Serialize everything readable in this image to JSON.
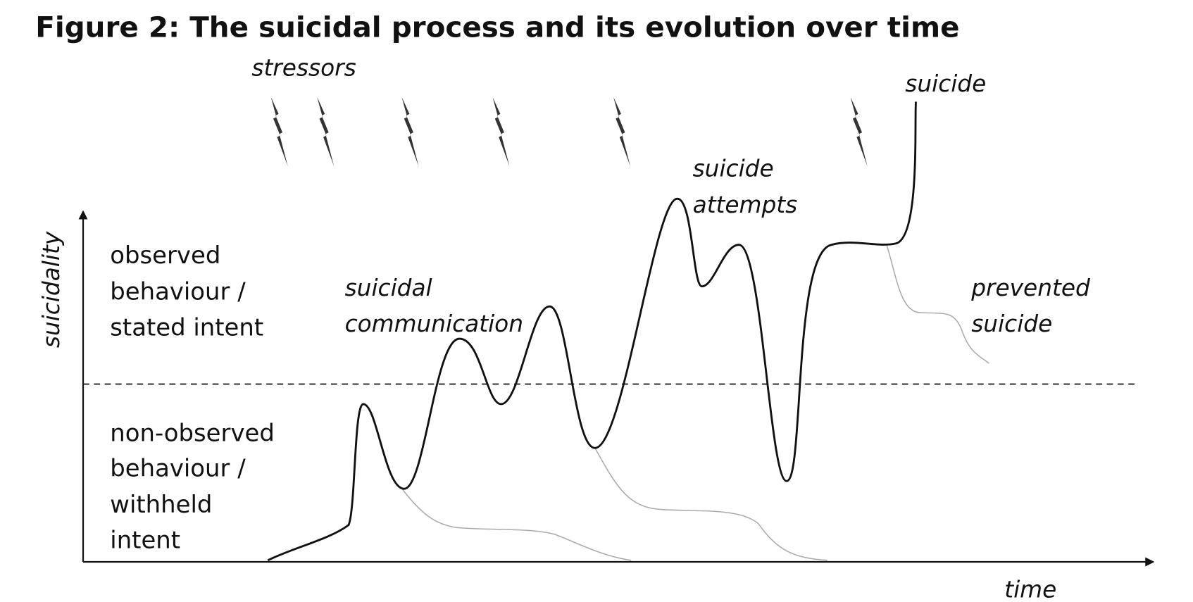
{
  "title": "Figure 2: The suicidal process and its evolution over time",
  "labels": {
    "stressors": "stressors",
    "suicide": "suicide",
    "suicide_attempts": [
      "suicide",
      "attempts"
    ],
    "suicidal_communication": [
      "suicidal",
      "communication"
    ],
    "prevented_suicide": [
      "prevented",
      "suicide"
    ],
    "y_axis": "suicidality",
    "x_axis": "time"
  },
  "regions": {
    "observed": [
      "observed",
      "behaviour /",
      "stated intent"
    ],
    "non_observed": [
      "non-observed",
      "behaviour /",
      "withheld",
      "intent"
    ]
  }
}
